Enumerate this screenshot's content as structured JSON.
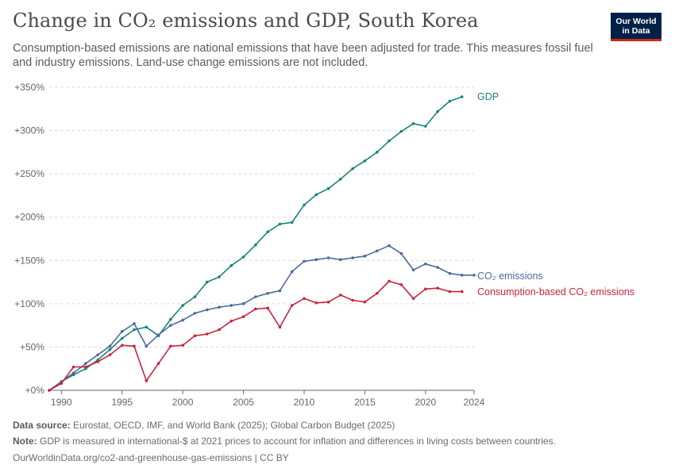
{
  "title": "Change in CO₂ emissions and GDP, South Korea",
  "subtitle": "Consumption-based emissions are national emissions that have been adjusted for trade. This measures fossil fuel and industry emissions. Land-use change emissions are not included.",
  "logo": {
    "line1": "Our World",
    "line2": "in Data"
  },
  "footer": {
    "source_label": "Data source:",
    "source_text": "Eurostat, OECD, IMF, and World Bank (2025); Global Carbon Budget (2025)",
    "note_label": "Note:",
    "note_text": "GDP is measured in international-$ at 2021 prices to account for inflation and differences in living costs between countries.",
    "url": "OurWorldinData.org/co2-and-greenhouse-gas-emissions",
    "license": "| CC BY"
  },
  "colors": {
    "gdp": "#16867a",
    "co2": "#4c6a9c",
    "consumption": "#c8243f",
    "grid": "#dddddd",
    "axis": "#666666"
  },
  "chart_data": {
    "type": "line",
    "xlim": [
      1989,
      2024
    ],
    "ylim": [
      0,
      350
    ],
    "x_ticks": [
      1990,
      1995,
      2000,
      2005,
      2010,
      2015,
      2020,
      2024
    ],
    "y_ticks": [
      0,
      50,
      100,
      150,
      200,
      250,
      300,
      350
    ],
    "y_tick_labels": [
      "+0%",
      "+50%",
      "+100%",
      "+150%",
      "+200%",
      "+250%",
      "+300%",
      "+350%"
    ],
    "grid": "horizontal dashed",
    "legend": "line-end labels",
    "series": [
      {
        "name": "GDP",
        "x": [
          1989,
          1990,
          1991,
          1992,
          1993,
          1994,
          1995,
          1996,
          1997,
          1998,
          1999,
          2000,
          2001,
          2002,
          2003,
          2004,
          2005,
          2006,
          2007,
          2008,
          2009,
          2010,
          2011,
          2012,
          2013,
          2014,
          2015,
          2016,
          2017,
          2018,
          2019,
          2020,
          2021,
          2022,
          2023
        ],
        "values": [
          0,
          10,
          18,
          25,
          35,
          47,
          60,
          70,
          73,
          63,
          82,
          98,
          108,
          125,
          131,
          144,
          154,
          168,
          183,
          192,
          194,
          214,
          226,
          233,
          244,
          256,
          265,
          275,
          288,
          299,
          308,
          305,
          322,
          334,
          339
        ]
      },
      {
        "name": "CO₂ emissions",
        "x": [
          1989,
          1990,
          1991,
          1992,
          1993,
          1994,
          1995,
          1996,
          1997,
          1998,
          1999,
          2000,
          2001,
          2002,
          2003,
          2004,
          2005,
          2006,
          2007,
          2008,
          2009,
          2010,
          2011,
          2012,
          2013,
          2014,
          2015,
          2016,
          2017,
          2018,
          2019,
          2020,
          2021,
          2022,
          2023,
          2024
        ],
        "values": [
          0,
          10,
          20,
          31,
          41,
          51,
          68,
          77,
          51,
          64,
          75,
          81,
          89,
          93,
          96,
          98,
          100,
          108,
          112,
          115,
          137,
          149,
          151,
          153,
          151,
          153,
          155,
          161,
          167,
          158,
          139,
          146,
          142,
          135,
          133,
          133
        ]
      },
      {
        "name": "Consumption-based CO₂ emissions",
        "x": [
          1989,
          1990,
          1991,
          1992,
          1993,
          1994,
          1995,
          1996,
          1997,
          1998,
          1999,
          2000,
          2001,
          2002,
          2003,
          2004,
          2005,
          2006,
          2007,
          2008,
          2009,
          2010,
          2011,
          2012,
          2013,
          2014,
          2015,
          2016,
          2017,
          2018,
          2019,
          2020,
          2021,
          2022,
          2023
        ],
        "values": [
          0,
          8,
          27,
          27,
          33,
          41,
          52,
          51,
          11,
          31,
          51,
          52,
          63,
          65,
          70,
          80,
          85,
          94,
          95,
          73,
          98,
          106,
          101,
          102,
          110,
          104,
          102,
          112,
          126,
          122,
          106,
          117,
          118,
          114,
          114
        ]
      }
    ]
  }
}
